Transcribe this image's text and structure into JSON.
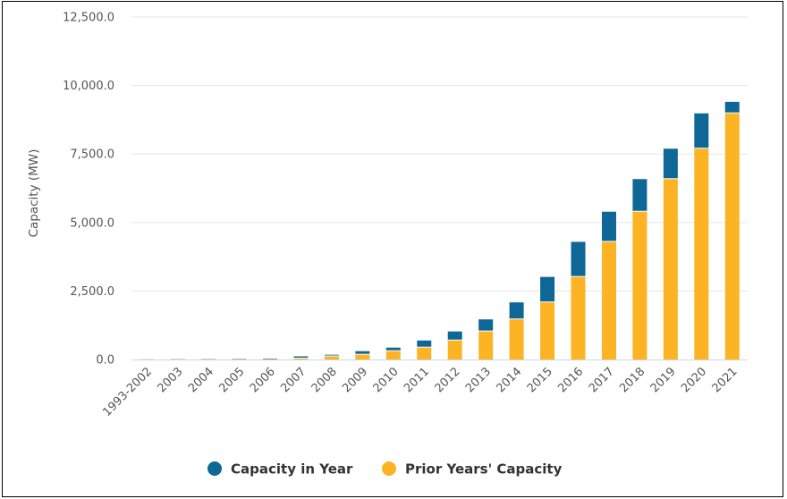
{
  "chart_data": {
    "type": "bar",
    "stacked": true,
    "categories": [
      "1993-2002",
      "2003",
      "2004",
      "2005",
      "2006",
      "2007",
      "2008",
      "2009",
      "2010",
      "2011",
      "2012",
      "2013",
      "2014",
      "2015",
      "2016",
      "2017",
      "2018",
      "2019",
      "2020",
      "2021"
    ],
    "series": [
      {
        "name": "Capacity in Year",
        "color": "#0e6796",
        "values": [
          5,
          2,
          2,
          5,
          20,
          80,
          60,
          130,
          130,
          260,
          330,
          440,
          620,
          930,
          1280,
          1100,
          1190,
          1110,
          1290,
          420
        ]
      },
      {
        "name": "Prior Years' Capacity",
        "color": "#fcb424",
        "values": [
          0,
          5,
          7,
          9,
          14,
          34,
          114,
          174,
          304,
          434,
          694,
          1024,
          1464,
          2084,
          3014,
          4294,
          5394,
          6584,
          7694,
          8984
        ]
      }
    ],
    "ylabel": "Capacity (MW)",
    "ylim": [
      0,
      12500
    ],
    "yticks": [
      "0.0",
      "2,500.0",
      "5,000.0",
      "7,500.0",
      "10,000.0",
      "12,500.0"
    ],
    "ytick_values": [
      0,
      2500,
      5000,
      7500,
      10000,
      12500
    ],
    "grid": true,
    "legend_position": "bottom-center"
  }
}
